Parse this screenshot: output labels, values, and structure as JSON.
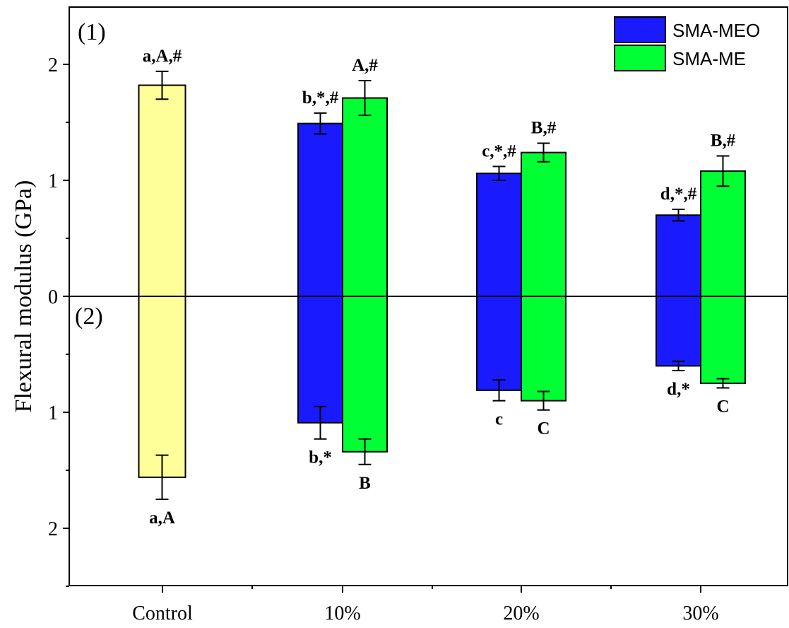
{
  "chart_data": {
    "type": "bar",
    "ylabel": "Flexural modulus (GPa)",
    "categories": [
      "Control",
      "10%",
      "20%",
      "30%"
    ],
    "panels": [
      {
        "label": "(1)",
        "direction": "up",
        "yticks": [
          "0",
          "1",
          "2"
        ]
      },
      {
        "label": "(2)",
        "direction": "down",
        "yticks": [
          "1",
          "2"
        ]
      }
    ],
    "colors": {
      "Control": "#ffff99",
      "SMA-MEO": "#1a1aff",
      "SMA-ME": "#00ff33"
    },
    "legend": {
      "position": "top-right",
      "entries": [
        "SMA-MEO",
        "SMA-ME"
      ]
    },
    "bars": [
      {
        "category": "Control",
        "series": "Control",
        "panel": "(1)",
        "value": 1.82,
        "error": 0.12,
        "annotation": "a,A,#"
      },
      {
        "category": "10%",
        "series": "SMA-MEO",
        "panel": "(1)",
        "value": 1.49,
        "error": 0.09,
        "annotation": "b,*,#"
      },
      {
        "category": "10%",
        "series": "SMA-ME",
        "panel": "(1)",
        "value": 1.71,
        "error": 0.15,
        "annotation": "A,#"
      },
      {
        "category": "20%",
        "series": "SMA-MEO",
        "panel": "(1)",
        "value": 1.06,
        "error": 0.06,
        "annotation": "c,*,#"
      },
      {
        "category": "20%",
        "series": "SMA-ME",
        "panel": "(1)",
        "value": 1.24,
        "error": 0.08,
        "annotation": "B,#"
      },
      {
        "category": "30%",
        "series": "SMA-MEO",
        "panel": "(1)",
        "value": 0.7,
        "error": 0.05,
        "annotation": "d,*,#"
      },
      {
        "category": "30%",
        "series": "SMA-ME",
        "panel": "(1)",
        "value": 1.08,
        "error": 0.13,
        "annotation": "B,#"
      },
      {
        "category": "Control",
        "series": "Control",
        "panel": "(2)",
        "value": 1.56,
        "error": 0.19,
        "annotation": "a,A"
      },
      {
        "category": "10%",
        "series": "SMA-MEO",
        "panel": "(2)",
        "value": 1.09,
        "error": 0.14,
        "annotation": "b,*"
      },
      {
        "category": "10%",
        "series": "SMA-ME",
        "panel": "(2)",
        "value": 1.34,
        "error": 0.11,
        "annotation": "B"
      },
      {
        "category": "20%",
        "series": "SMA-MEO",
        "panel": "(2)",
        "value": 0.81,
        "error": 0.09,
        "annotation": "c"
      },
      {
        "category": "20%",
        "series": "SMA-ME",
        "panel": "(2)",
        "value": 0.9,
        "error": 0.08,
        "annotation": "C"
      },
      {
        "category": "30%",
        "series": "SMA-MEO",
        "panel": "(2)",
        "value": 0.6,
        "error": 0.04,
        "annotation": "d,*"
      },
      {
        "category": "30%",
        "series": "SMA-ME",
        "panel": "(2)",
        "value": 0.75,
        "error": 0.04,
        "annotation": "C"
      }
    ]
  }
}
